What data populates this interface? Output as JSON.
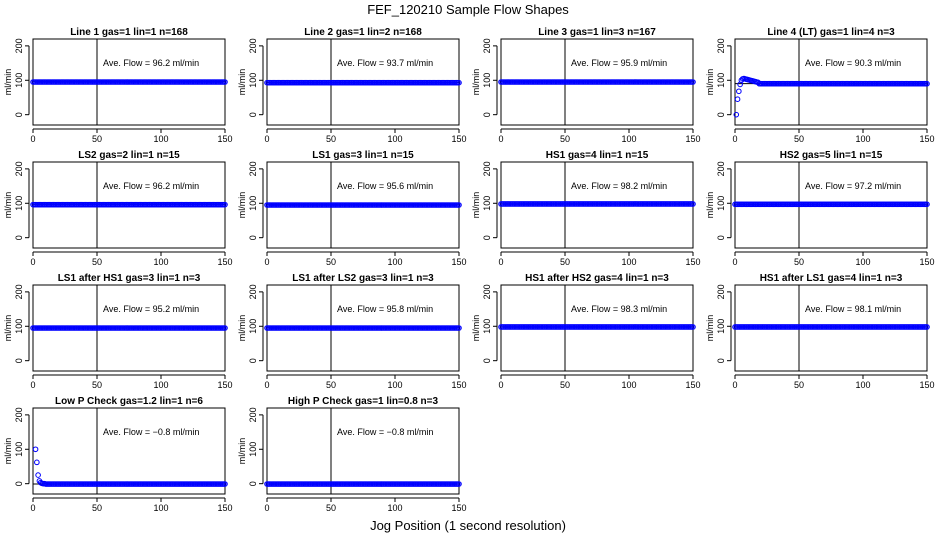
{
  "page_title": "FEF_120210  Sample Flow Shapes",
  "x_axis_label": "Jog Position (1 second resolution)",
  "chart_data": [
    {
      "type": "scatter",
      "title": "Line 1 gas=1 lin=1 n=168",
      "ylabel": "ml/min",
      "annotation": "Ave. Flow =  96.2  ml/min",
      "xlim": [
        0,
        150
      ],
      "ylim": [
        -30,
        220
      ],
      "xticks": [
        0,
        50,
        100,
        150
      ],
      "yticks": [
        0,
        100,
        200
      ],
      "vline": 50,
      "hline": 96.2,
      "series": [
        {
          "color": "#0000ff",
          "gen": {
            "type": "flat",
            "level": 95,
            "x0": 0,
            "x1": 150
          }
        }
      ]
    },
    {
      "type": "scatter",
      "title": "Line 2 gas=1 lin=2 n=168",
      "ylabel": "ml/min",
      "annotation": "Ave. Flow =  93.7  ml/min",
      "xlim": [
        0,
        150
      ],
      "ylim": [
        -30,
        220
      ],
      "xticks": [
        0,
        50,
        100,
        150
      ],
      "yticks": [
        0,
        100,
        200
      ],
      "vline": 50,
      "hline": 93.7,
      "series": [
        {
          "color": "#0000ff",
          "gen": {
            "type": "flat",
            "level": 93,
            "x0": 0,
            "x1": 150
          }
        }
      ]
    },
    {
      "type": "scatter",
      "title": "Line 3 gas=1 lin=3 n=167",
      "ylabel": "ml/min",
      "annotation": "Ave. Flow =  95.9  ml/min",
      "xlim": [
        0,
        150
      ],
      "ylim": [
        -30,
        220
      ],
      "xticks": [
        0,
        50,
        100,
        150
      ],
      "yticks": [
        0,
        100,
        200
      ],
      "vline": 50,
      "hline": 95.9,
      "series": [
        {
          "color": "#0000ff",
          "gen": {
            "type": "flat",
            "level": 95,
            "x0": 0,
            "x1": 150
          }
        }
      ]
    },
    {
      "type": "scatter",
      "title": "Line 4 (LT) gas=1 lin=4 n=3",
      "ylabel": "ml/min",
      "annotation": "Ave. Flow =  90.3  ml/min",
      "xlim": [
        0,
        150
      ],
      "ylim": [
        -30,
        220
      ],
      "xticks": [
        0,
        50,
        100,
        150
      ],
      "yticks": [
        0,
        100,
        200
      ],
      "vline": 50,
      "hline": 90.3,
      "series": [
        {
          "color": "#0000ff",
          "points": [
            [
              1,
              0
            ],
            [
              2,
              45
            ],
            [
              3,
              68
            ],
            [
              4,
              88
            ],
            [
              5,
              100
            ],
            [
              6,
              104
            ],
            [
              7,
              105
            ],
            [
              8,
              104
            ],
            [
              9,
              103
            ],
            [
              10,
              102
            ],
            [
              11,
              101
            ],
            [
              12,
              100
            ],
            [
              13,
              99
            ],
            [
              14,
              98
            ],
            [
              15,
              97
            ],
            [
              16,
              96
            ],
            [
              17,
              95
            ],
            [
              18,
              94
            ]
          ],
          "gen": {
            "type": "flat",
            "level": 90,
            "x0": 19,
            "x1": 150
          }
        }
      ]
    },
    {
      "type": "scatter",
      "title": "LS2 gas=2 lin=1 n=15",
      "ylabel": "ml/min",
      "annotation": "Ave. Flow =  96.2  ml/min",
      "xlim": [
        0,
        150
      ],
      "ylim": [
        -30,
        220
      ],
      "xticks": [
        0,
        50,
        100,
        150
      ],
      "yticks": [
        0,
        100,
        200
      ],
      "vline": 50,
      "hline": 96.2,
      "series": [
        {
          "color": "#0000ff",
          "gen": {
            "type": "flat",
            "level": 96,
            "x0": 0,
            "x1": 150
          }
        }
      ]
    },
    {
      "type": "scatter",
      "title": "LS1 gas=3 lin=1 n=15",
      "ylabel": "ml/min",
      "annotation": "Ave. Flow =  95.6  ml/min",
      "xlim": [
        0,
        150
      ],
      "ylim": [
        -30,
        220
      ],
      "xticks": [
        0,
        50,
        100,
        150
      ],
      "yticks": [
        0,
        100,
        200
      ],
      "vline": 50,
      "hline": 95.6,
      "series": [
        {
          "color": "#0000ff",
          "gen": {
            "type": "flat",
            "level": 95,
            "x0": 0,
            "x1": 150
          }
        }
      ]
    },
    {
      "type": "scatter",
      "title": "HS1 gas=4 lin=1 n=15",
      "ylabel": "ml/min",
      "annotation": "Ave. Flow =  98.2  ml/min",
      "xlim": [
        0,
        150
      ],
      "ylim": [
        -30,
        220
      ],
      "xticks": [
        0,
        50,
        100,
        150
      ],
      "yticks": [
        0,
        100,
        200
      ],
      "vline": 50,
      "hline": 98.2,
      "series": [
        {
          "color": "#0000ff",
          "gen": {
            "type": "flat",
            "level": 98,
            "x0": 0,
            "x1": 150
          }
        }
      ]
    },
    {
      "type": "scatter",
      "title": "HS2 gas=5 lin=1 n=15",
      "ylabel": "ml/min",
      "annotation": "Ave. Flow =  97.2  ml/min",
      "xlim": [
        0,
        150
      ],
      "ylim": [
        -30,
        220
      ],
      "xticks": [
        0,
        50,
        100,
        150
      ],
      "yticks": [
        0,
        100,
        200
      ],
      "vline": 50,
      "hline": 97.2,
      "series": [
        {
          "color": "#0000ff",
          "gen": {
            "type": "flat",
            "level": 97,
            "x0": 0,
            "x1": 150
          }
        }
      ]
    },
    {
      "type": "scatter",
      "title": "LS1 after HS1 gas=3 lin=1 n=3",
      "ylabel": "ml/min",
      "annotation": "Ave. Flow =  95.2  ml/min",
      "xlim": [
        0,
        150
      ],
      "ylim": [
        -30,
        220
      ],
      "xticks": [
        0,
        50,
        100,
        150
      ],
      "yticks": [
        0,
        100,
        200
      ],
      "vline": 50,
      "hline": 95.2,
      "series": [
        {
          "color": "#0000ff",
          "gen": {
            "type": "flat",
            "level": 95,
            "x0": 0,
            "x1": 150
          }
        }
      ]
    },
    {
      "type": "scatter",
      "title": "LS1 after LS2 gas=3 lin=1 n=3",
      "ylabel": "ml/min",
      "annotation": "Ave. Flow =  95.8  ml/min",
      "xlim": [
        0,
        150
      ],
      "ylim": [
        -30,
        220
      ],
      "xticks": [
        0,
        50,
        100,
        150
      ],
      "yticks": [
        0,
        100,
        200
      ],
      "vline": 50,
      "hline": 95.8,
      "series": [
        {
          "color": "#0000ff",
          "gen": {
            "type": "flat",
            "level": 95,
            "x0": 0,
            "x1": 150
          }
        }
      ]
    },
    {
      "type": "scatter",
      "title": "HS1 after HS2 gas=4 lin=1 n=3",
      "ylabel": "ml/min",
      "annotation": "Ave. Flow =  98.3  ml/min",
      "xlim": [
        0,
        150
      ],
      "ylim": [
        -30,
        220
      ],
      "xticks": [
        0,
        50,
        100,
        150
      ],
      "yticks": [
        0,
        100,
        200
      ],
      "vline": 50,
      "hline": 98.3,
      "series": [
        {
          "color": "#0000ff",
          "gen": {
            "type": "flat",
            "level": 98,
            "x0": 0,
            "x1": 150
          }
        }
      ]
    },
    {
      "type": "scatter",
      "title": "HS1 after LS1 gas=4 lin=1 n=3",
      "ylabel": "ml/min",
      "annotation": "Ave. Flow =  98.1  ml/min",
      "xlim": [
        0,
        150
      ],
      "ylim": [
        -30,
        220
      ],
      "xticks": [
        0,
        50,
        100,
        150
      ],
      "yticks": [
        0,
        100,
        200
      ],
      "vline": 50,
      "hline": 98.1,
      "series": [
        {
          "color": "#0000ff",
          "gen": {
            "type": "flat",
            "level": 98,
            "x0": 0,
            "x1": 150
          }
        }
      ]
    },
    {
      "type": "scatter",
      "title": "Low P Check gas=1.2 lin=1 n=6",
      "ylabel": "ml/min",
      "annotation": "Ave. Flow =  −0.8  ml/min",
      "xlim": [
        0,
        150
      ],
      "ylim": [
        -30,
        220
      ],
      "xticks": [
        0,
        50,
        100,
        150
      ],
      "yticks": [
        0,
        100,
        200
      ],
      "vline": 50,
      "hline": -0.8,
      "series": [
        {
          "color": "#0000ff",
          "points": [
            [
              2,
              100
            ],
            [
              3,
              62
            ],
            [
              4,
              25
            ],
            [
              5,
              8
            ],
            [
              6,
              3
            ],
            [
              7,
              1
            ],
            [
              8,
              0
            ],
            [
              9,
              0
            ],
            [
              10,
              -1
            ]
          ],
          "gen": {
            "type": "flat",
            "level": -1,
            "x0": 11,
            "x1": 150
          }
        }
      ]
    },
    {
      "type": "scatter",
      "title": "High P Check gas=1 lin=0.8 n=3",
      "ylabel": "ml/min",
      "annotation": "Ave. Flow =  −0.8  ml/min",
      "xlim": [
        0,
        150
      ],
      "ylim": [
        -30,
        220
      ],
      "xticks": [
        0,
        50,
        100,
        150
      ],
      "yticks": [
        0,
        100,
        200
      ],
      "vline": 50,
      "hline": -0.8,
      "series": [
        {
          "color": "#0000ff",
          "gen": {
            "type": "flat",
            "level": -1,
            "x0": 0,
            "x1": 150
          }
        }
      ]
    }
  ]
}
